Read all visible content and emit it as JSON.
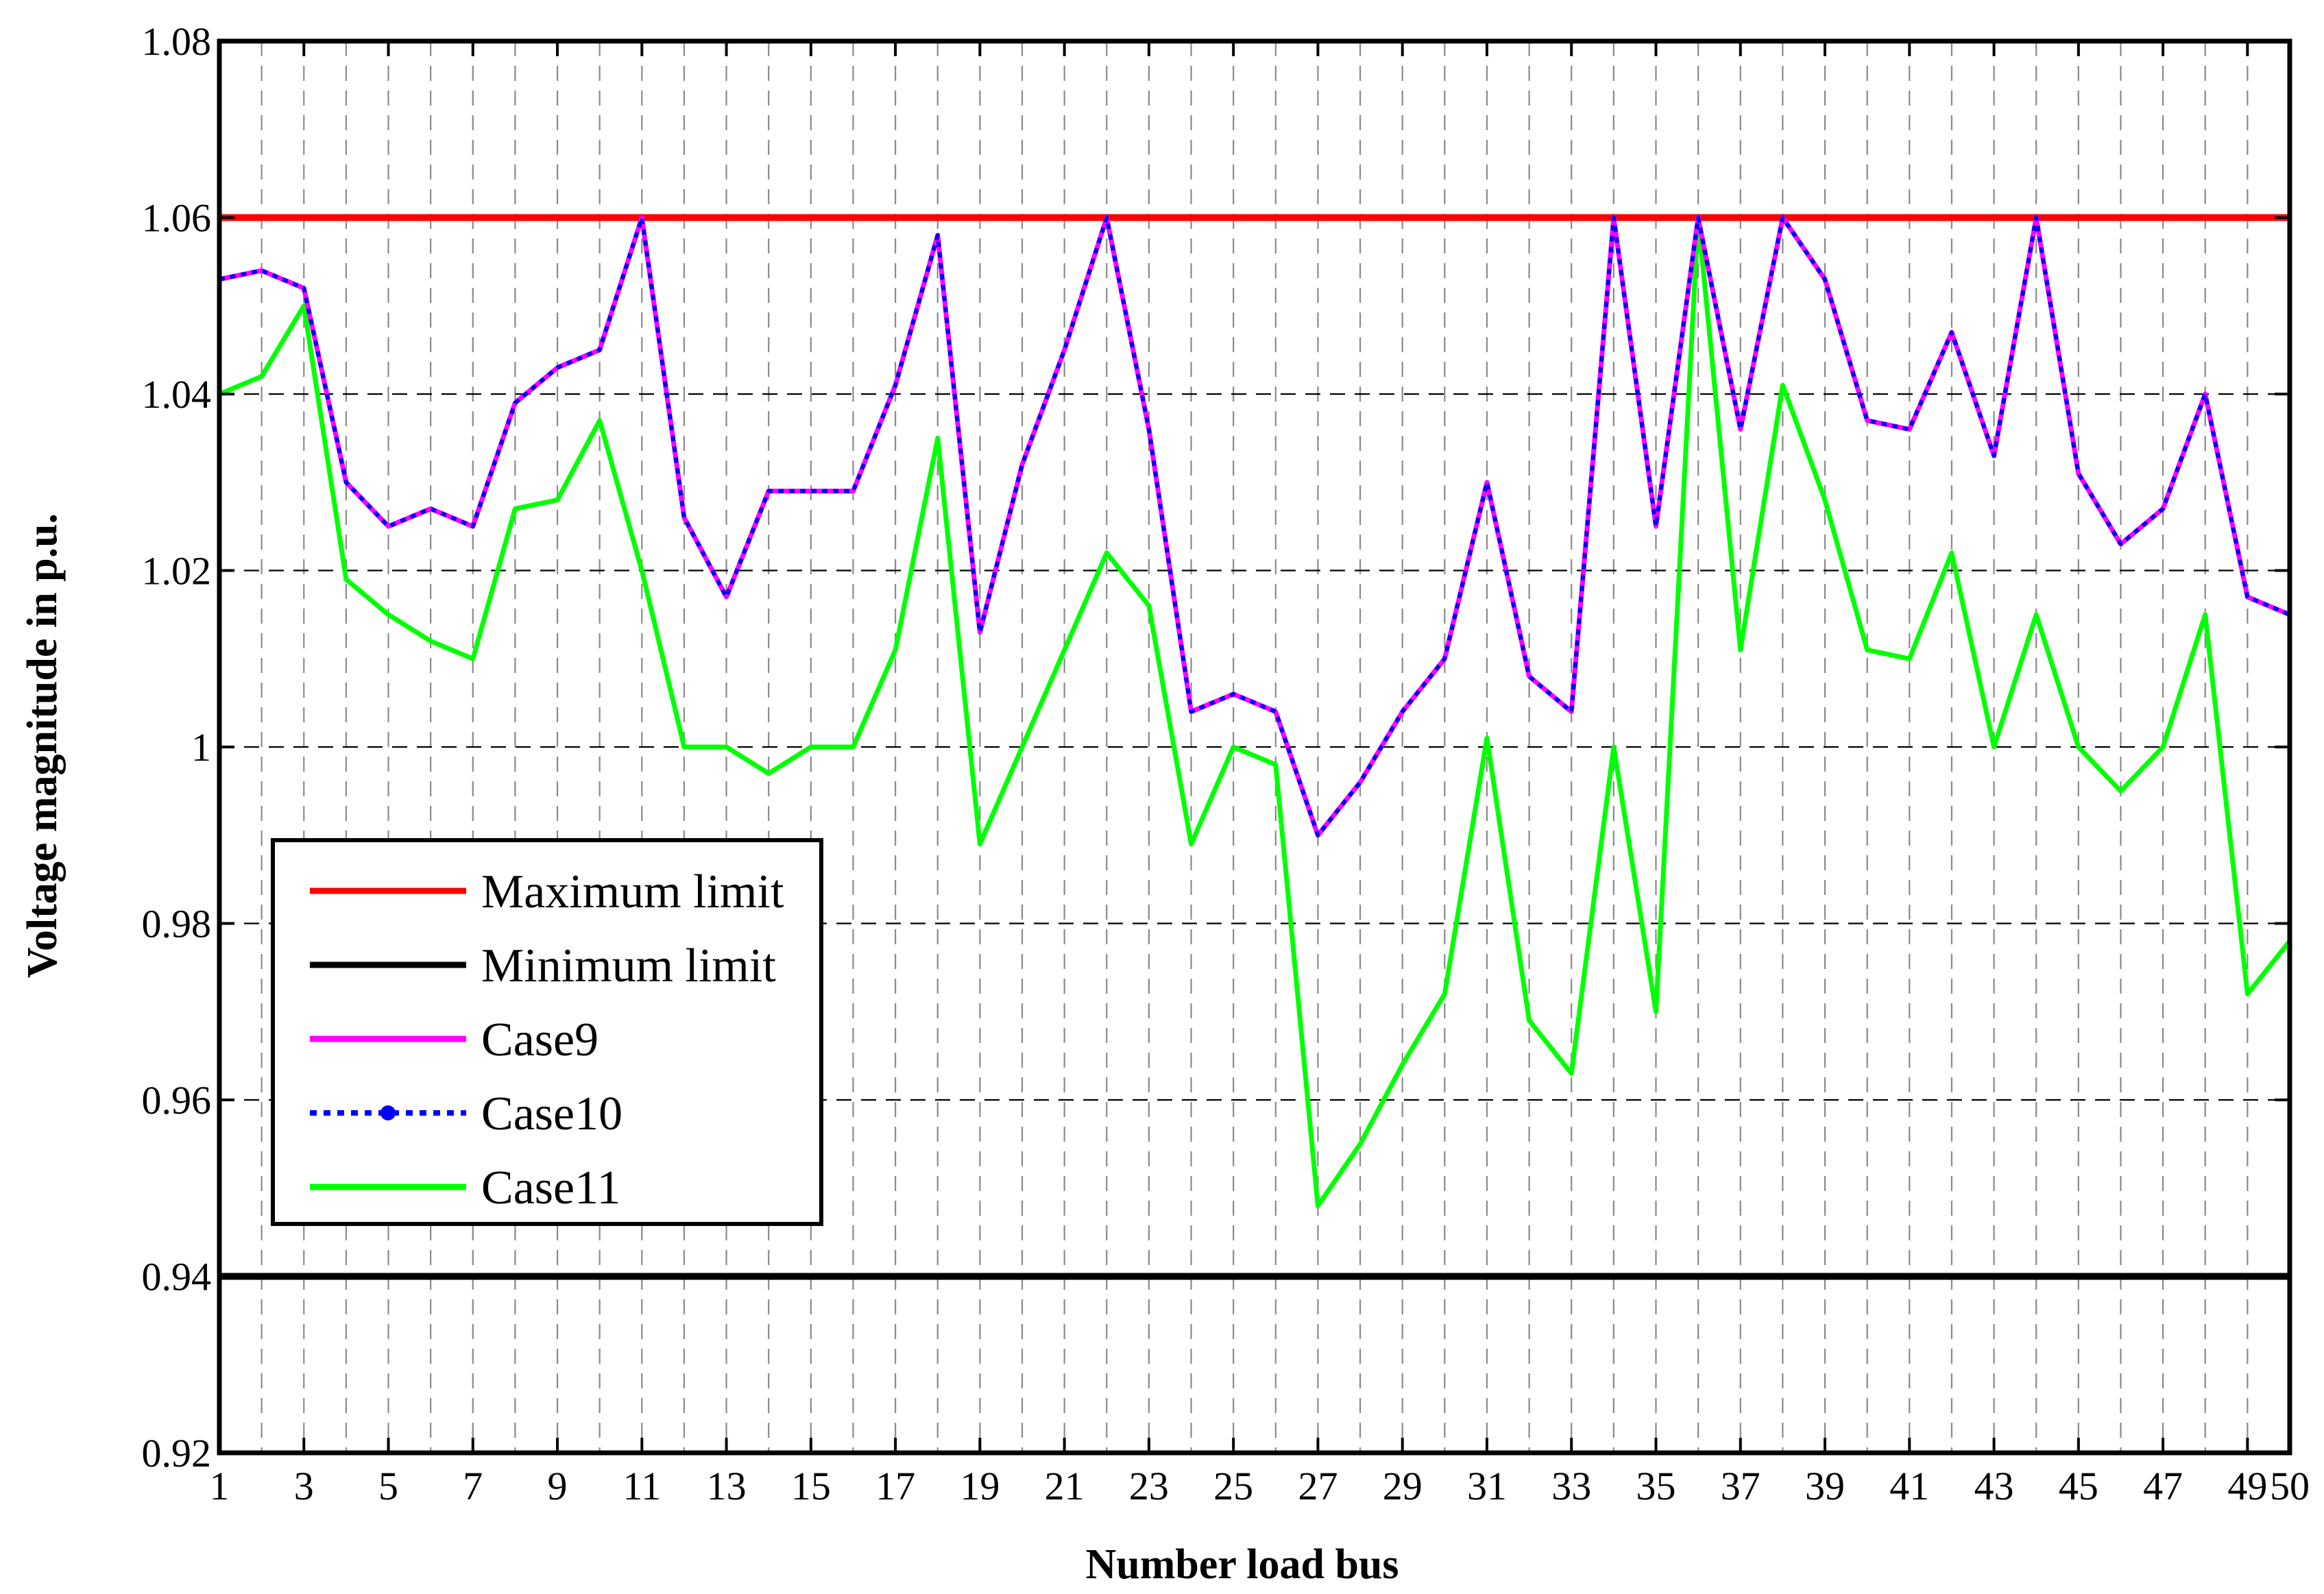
{
  "chart_data": {
    "type": "line",
    "title": "",
    "xlabel": "Number load bus",
    "ylabel": "Voltage magnitude in p.u.",
    "xlim": [
      1,
      50
    ],
    "ylim": [
      0.92,
      1.08
    ],
    "x_ticks": [
      1,
      3,
      5,
      7,
      9,
      11,
      13,
      15,
      17,
      19,
      21,
      23,
      25,
      27,
      29,
      31,
      33,
      35,
      37,
      39,
      41,
      43,
      45,
      47,
      49,
      50
    ],
    "x_tick_labels": [
      "1",
      "3",
      "5",
      "7",
      "9",
      "11",
      "13",
      "15",
      "17",
      "19",
      "21",
      "23",
      "25",
      "27",
      "29",
      "31",
      "33",
      "35",
      "37",
      "39",
      "41",
      "43",
      "45",
      "47",
      "49",
      "50"
    ],
    "y_ticks": [
      0.92,
      0.94,
      0.96,
      0.98,
      1.0,
      1.02,
      1.04,
      1.06,
      1.08
    ],
    "y_tick_labels": [
      "0.92",
      "0.94",
      "0.96",
      "0.98",
      "1",
      "1.02",
      "1.04",
      "1.06",
      "1.08"
    ],
    "grid": true,
    "legend_position": "lower-left",
    "x": [
      1,
      2,
      3,
      4,
      5,
      6,
      7,
      8,
      9,
      10,
      11,
      12,
      13,
      14,
      15,
      16,
      17,
      18,
      19,
      20,
      21,
      22,
      23,
      24,
      25,
      26,
      27,
      28,
      29,
      30,
      31,
      32,
      33,
      34,
      35,
      36,
      37,
      38,
      39,
      40,
      41,
      42,
      43,
      44,
      45,
      46,
      47,
      48,
      49,
      50
    ],
    "series": [
      {
        "name": "Maximum limit",
        "color": "#ff0000",
        "style": "solid",
        "values": [
          1.06,
          1.06,
          1.06,
          1.06,
          1.06,
          1.06,
          1.06,
          1.06,
          1.06,
          1.06,
          1.06,
          1.06,
          1.06,
          1.06,
          1.06,
          1.06,
          1.06,
          1.06,
          1.06,
          1.06,
          1.06,
          1.06,
          1.06,
          1.06,
          1.06,
          1.06,
          1.06,
          1.06,
          1.06,
          1.06,
          1.06,
          1.06,
          1.06,
          1.06,
          1.06,
          1.06,
          1.06,
          1.06,
          1.06,
          1.06,
          1.06,
          1.06,
          1.06,
          1.06,
          1.06,
          1.06,
          1.06,
          1.06,
          1.06,
          1.06
        ]
      },
      {
        "name": "Minimum limit",
        "color": "#000000",
        "style": "solid",
        "values": [
          0.94,
          0.94,
          0.94,
          0.94,
          0.94,
          0.94,
          0.94,
          0.94,
          0.94,
          0.94,
          0.94,
          0.94,
          0.94,
          0.94,
          0.94,
          0.94,
          0.94,
          0.94,
          0.94,
          0.94,
          0.94,
          0.94,
          0.94,
          0.94,
          0.94,
          0.94,
          0.94,
          0.94,
          0.94,
          0.94,
          0.94,
          0.94,
          0.94,
          0.94,
          0.94,
          0.94,
          0.94,
          0.94,
          0.94,
          0.94,
          0.94,
          0.94,
          0.94,
          0.94,
          0.94,
          0.94,
          0.94,
          0.94,
          0.94,
          0.94
        ]
      },
      {
        "name": "Case9",
        "color": "#ff00ff",
        "style": "solid",
        "values": [
          1.053,
          1.054,
          1.052,
          1.03,
          1.025,
          1.027,
          1.025,
          1.039,
          1.043,
          1.045,
          1.06,
          1.026,
          1.017,
          1.029,
          1.029,
          1.029,
          1.041,
          1.058,
          1.013,
          1.032,
          1.045,
          1.06,
          1.036,
          1.004,
          1.006,
          1.004,
          0.99,
          0.996,
          1.004,
          1.01,
          1.03,
          1.008,
          1.004,
          1.06,
          1.025,
          1.06,
          1.036,
          1.06,
          1.053,
          1.037,
          1.036,
          1.047,
          1.033,
          1.06,
          1.031,
          1.023,
          1.027,
          1.04,
          1.017,
          1.015
        ]
      },
      {
        "name": "Case10",
        "color": "#0000ff",
        "style": "dotted",
        "values": [
          1.053,
          1.054,
          1.052,
          1.03,
          1.025,
          1.027,
          1.025,
          1.039,
          1.043,
          1.045,
          1.06,
          1.026,
          1.017,
          1.029,
          1.029,
          1.029,
          1.041,
          1.058,
          1.013,
          1.032,
          1.045,
          1.06,
          1.036,
          1.004,
          1.006,
          1.004,
          0.99,
          0.996,
          1.004,
          1.01,
          1.03,
          1.008,
          1.004,
          1.06,
          1.025,
          1.06,
          1.036,
          1.06,
          1.053,
          1.037,
          1.036,
          1.047,
          1.033,
          1.06,
          1.031,
          1.023,
          1.027,
          1.04,
          1.017,
          1.015
        ]
      },
      {
        "name": "Case11",
        "color": "#00ff00",
        "style": "solid",
        "values": [
          1.04,
          1.042,
          1.05,
          1.019,
          1.015,
          1.012,
          1.01,
          1.027,
          1.028,
          1.037,
          1.02,
          1.0,
          1.0,
          0.997,
          1.0,
          1.0,
          1.011,
          1.035,
          0.989,
          1.0,
          1.011,
          1.022,
          1.016,
          0.989,
          1.0,
          0.998,
          0.948,
          0.955,
          0.964,
          0.972,
          1.001,
          0.969,
          0.963,
          1.0,
          0.97,
          1.06,
          1.011,
          1.041,
          1.028,
          1.011,
          1.01,
          1.022,
          1.0,
          1.015,
          1.0,
          0.995,
          1.0,
          1.015,
          0.972,
          0.978
        ]
      }
    ]
  }
}
